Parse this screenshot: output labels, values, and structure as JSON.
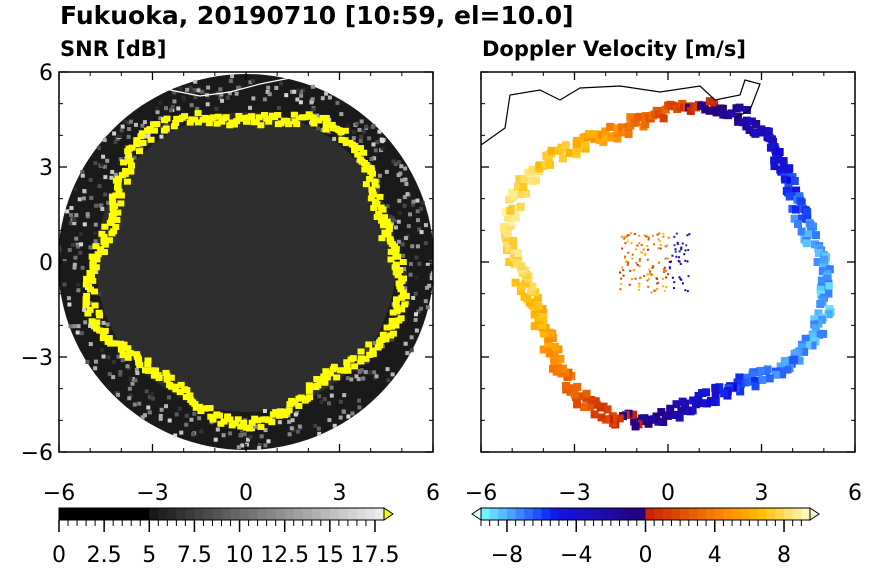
{
  "title": "Fukuoka, 20190710 [10:59, el=10.0]",
  "chart_data": [
    {
      "type": "heatmap",
      "title": "SNR [dB]",
      "xlim": [
        -6,
        6
      ],
      "ylim": [
        -6,
        6
      ],
      "xticks": [
        "−6",
        "−3",
        "0",
        "3",
        "6"
      ],
      "yticks": [
        "6",
        "3",
        "0",
        "−3",
        "−6"
      ],
      "colorbar": {
        "min": 0,
        "max": 18,
        "ticks": [
          "0",
          "2.5",
          "5",
          "7.5",
          "10",
          "12.5",
          "15",
          "17.5"
        ],
        "tick_values": [
          0,
          2.5,
          5,
          7.5,
          10,
          12.5,
          15,
          17.5
        ],
        "extend": "max",
        "over_color": "#ffff00"
      }
    },
    {
      "type": "heatmap",
      "title": "Doppler Velocity [m/s]",
      "xlim": [
        -6,
        6
      ],
      "ylim": [
        -6,
        6
      ],
      "xticks": [
        "−6",
        "−3",
        "0",
        "3",
        "6"
      ],
      "yticks": [
        "6",
        "3",
        "0",
        "−3",
        "−6"
      ],
      "colorbar": {
        "min": -9.5,
        "max": 9.5,
        "ticks": [
          "−8",
          "−4",
          "0",
          "4",
          "8"
        ],
        "tick_values": [
          -8,
          -4,
          0,
          4,
          8
        ],
        "extend": "both"
      }
    }
  ]
}
